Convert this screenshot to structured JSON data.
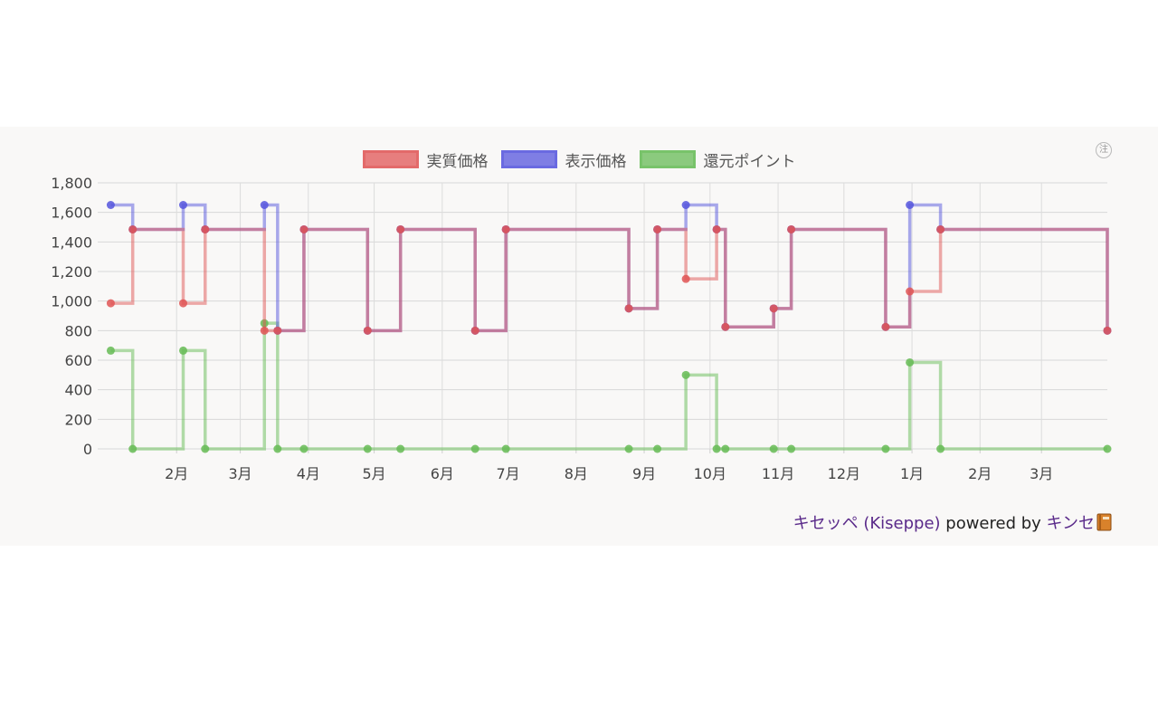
{
  "chart_data": {
    "type": "line",
    "step": true,
    "title": "",
    "xlabel": "",
    "ylabel": "",
    "ylim": [
      0,
      1800
    ],
    "yticks": [
      "0",
      "200",
      "400",
      "600",
      "800",
      "1,000",
      "1,200",
      "1,400",
      "1,600",
      "1,800"
    ],
    "xlim": [
      "2024-01-01",
      "2025-03-31"
    ],
    "xticks": [
      {
        "date": "2024-02-01",
        "label": "2月"
      },
      {
        "date": "2024-03-01",
        "label": "3月"
      },
      {
        "date": "2024-04-01",
        "label": "4月"
      },
      {
        "date": "2024-05-01",
        "label": "5月"
      },
      {
        "date": "2024-06-01",
        "label": "6月"
      },
      {
        "date": "2024-07-01",
        "label": "7月"
      },
      {
        "date": "2024-08-01",
        "label": "8月"
      },
      {
        "date": "2024-09-01",
        "label": "9月"
      },
      {
        "date": "2024-10-01",
        "label": "10月"
      },
      {
        "date": "2024-11-01",
        "label": "11月"
      },
      {
        "date": "2024-12-01",
        "label": "12月"
      },
      {
        "date": "2025-01-01",
        "label": "1月"
      },
      {
        "date": "2025-02-01",
        "label": "2月"
      },
      {
        "date": "2025-03-01",
        "label": "3月"
      }
    ],
    "grid": true,
    "legend_position": "top",
    "series": [
      {
        "name": "実質価格",
        "color": "#e05555",
        "points": [
          [
            "2024-01-02",
            985
          ],
          [
            "2024-01-12",
            1485
          ],
          [
            "2024-02-04",
            985
          ],
          [
            "2024-02-14",
            1485
          ],
          [
            "2024-03-12",
            800
          ],
          [
            "2024-03-18",
            800
          ],
          [
            "2024-03-30",
            1485
          ],
          [
            "2024-04-28",
            800
          ],
          [
            "2024-05-13",
            1485
          ],
          [
            "2024-06-16",
            800
          ],
          [
            "2024-06-30",
            1485
          ],
          [
            "2024-08-25",
            950
          ],
          [
            "2024-09-07",
            1485
          ],
          [
            "2024-09-20",
            1150
          ],
          [
            "2024-10-04",
            1485
          ],
          [
            "2024-10-08",
            825
          ],
          [
            "2024-10-30",
            950
          ],
          [
            "2024-11-07",
            1485
          ],
          [
            "2024-12-20",
            825
          ],
          [
            "2024-12-31",
            1065
          ],
          [
            "2025-01-14",
            1485
          ],
          [
            "2025-03-31",
            800
          ]
        ]
      },
      {
        "name": "表示価格",
        "color": "#5555dd",
        "points": [
          [
            "2024-01-02",
            1650
          ],
          [
            "2024-01-12",
            1485
          ],
          [
            "2024-02-04",
            1650
          ],
          [
            "2024-02-14",
            1485
          ],
          [
            "2024-03-12",
            1650
          ],
          [
            "2024-03-18",
            800
          ],
          [
            "2024-03-30",
            1485
          ],
          [
            "2024-04-28",
            800
          ],
          [
            "2024-05-13",
            1485
          ],
          [
            "2024-06-16",
            800
          ],
          [
            "2024-06-30",
            1485
          ],
          [
            "2024-08-25",
            950
          ],
          [
            "2024-09-07",
            1485
          ],
          [
            "2024-09-20",
            1650
          ],
          [
            "2024-10-04",
            1485
          ],
          [
            "2024-10-08",
            825
          ],
          [
            "2024-10-30",
            950
          ],
          [
            "2024-11-07",
            1485
          ],
          [
            "2024-12-20",
            825
          ],
          [
            "2024-12-31",
            1650
          ],
          [
            "2025-01-14",
            1485
          ],
          [
            "2025-03-31",
            800
          ]
        ]
      },
      {
        "name": "還元ポイント",
        "color": "#66bb55",
        "points": [
          [
            "2024-01-02",
            665
          ],
          [
            "2024-01-12",
            0
          ],
          [
            "2024-02-04",
            665
          ],
          [
            "2024-02-14",
            0
          ],
          [
            "2024-03-12",
            850
          ],
          [
            "2024-03-18",
            0
          ],
          [
            "2024-03-30",
            0
          ],
          [
            "2024-04-28",
            0
          ],
          [
            "2024-05-13",
            0
          ],
          [
            "2024-06-16",
            0
          ],
          [
            "2024-06-30",
            0
          ],
          [
            "2024-08-25",
            0
          ],
          [
            "2024-09-07",
            0
          ],
          [
            "2024-09-20",
            500
          ],
          [
            "2024-10-04",
            0
          ],
          [
            "2024-10-08",
            0
          ],
          [
            "2024-10-30",
            0
          ],
          [
            "2024-11-07",
            0
          ],
          [
            "2024-12-20",
            0
          ],
          [
            "2024-12-31",
            585
          ],
          [
            "2025-01-14",
            0
          ],
          [
            "2025-03-31",
            0
          ]
        ]
      }
    ]
  },
  "footer": {
    "site_name": "キセッペ (Kiseppe)",
    "powered_by": " powered by ",
    "service_name": "キンセリ",
    "book_icon": "book-icon"
  },
  "note_icon": {
    "name": "note-icon",
    "symbol": "注"
  }
}
